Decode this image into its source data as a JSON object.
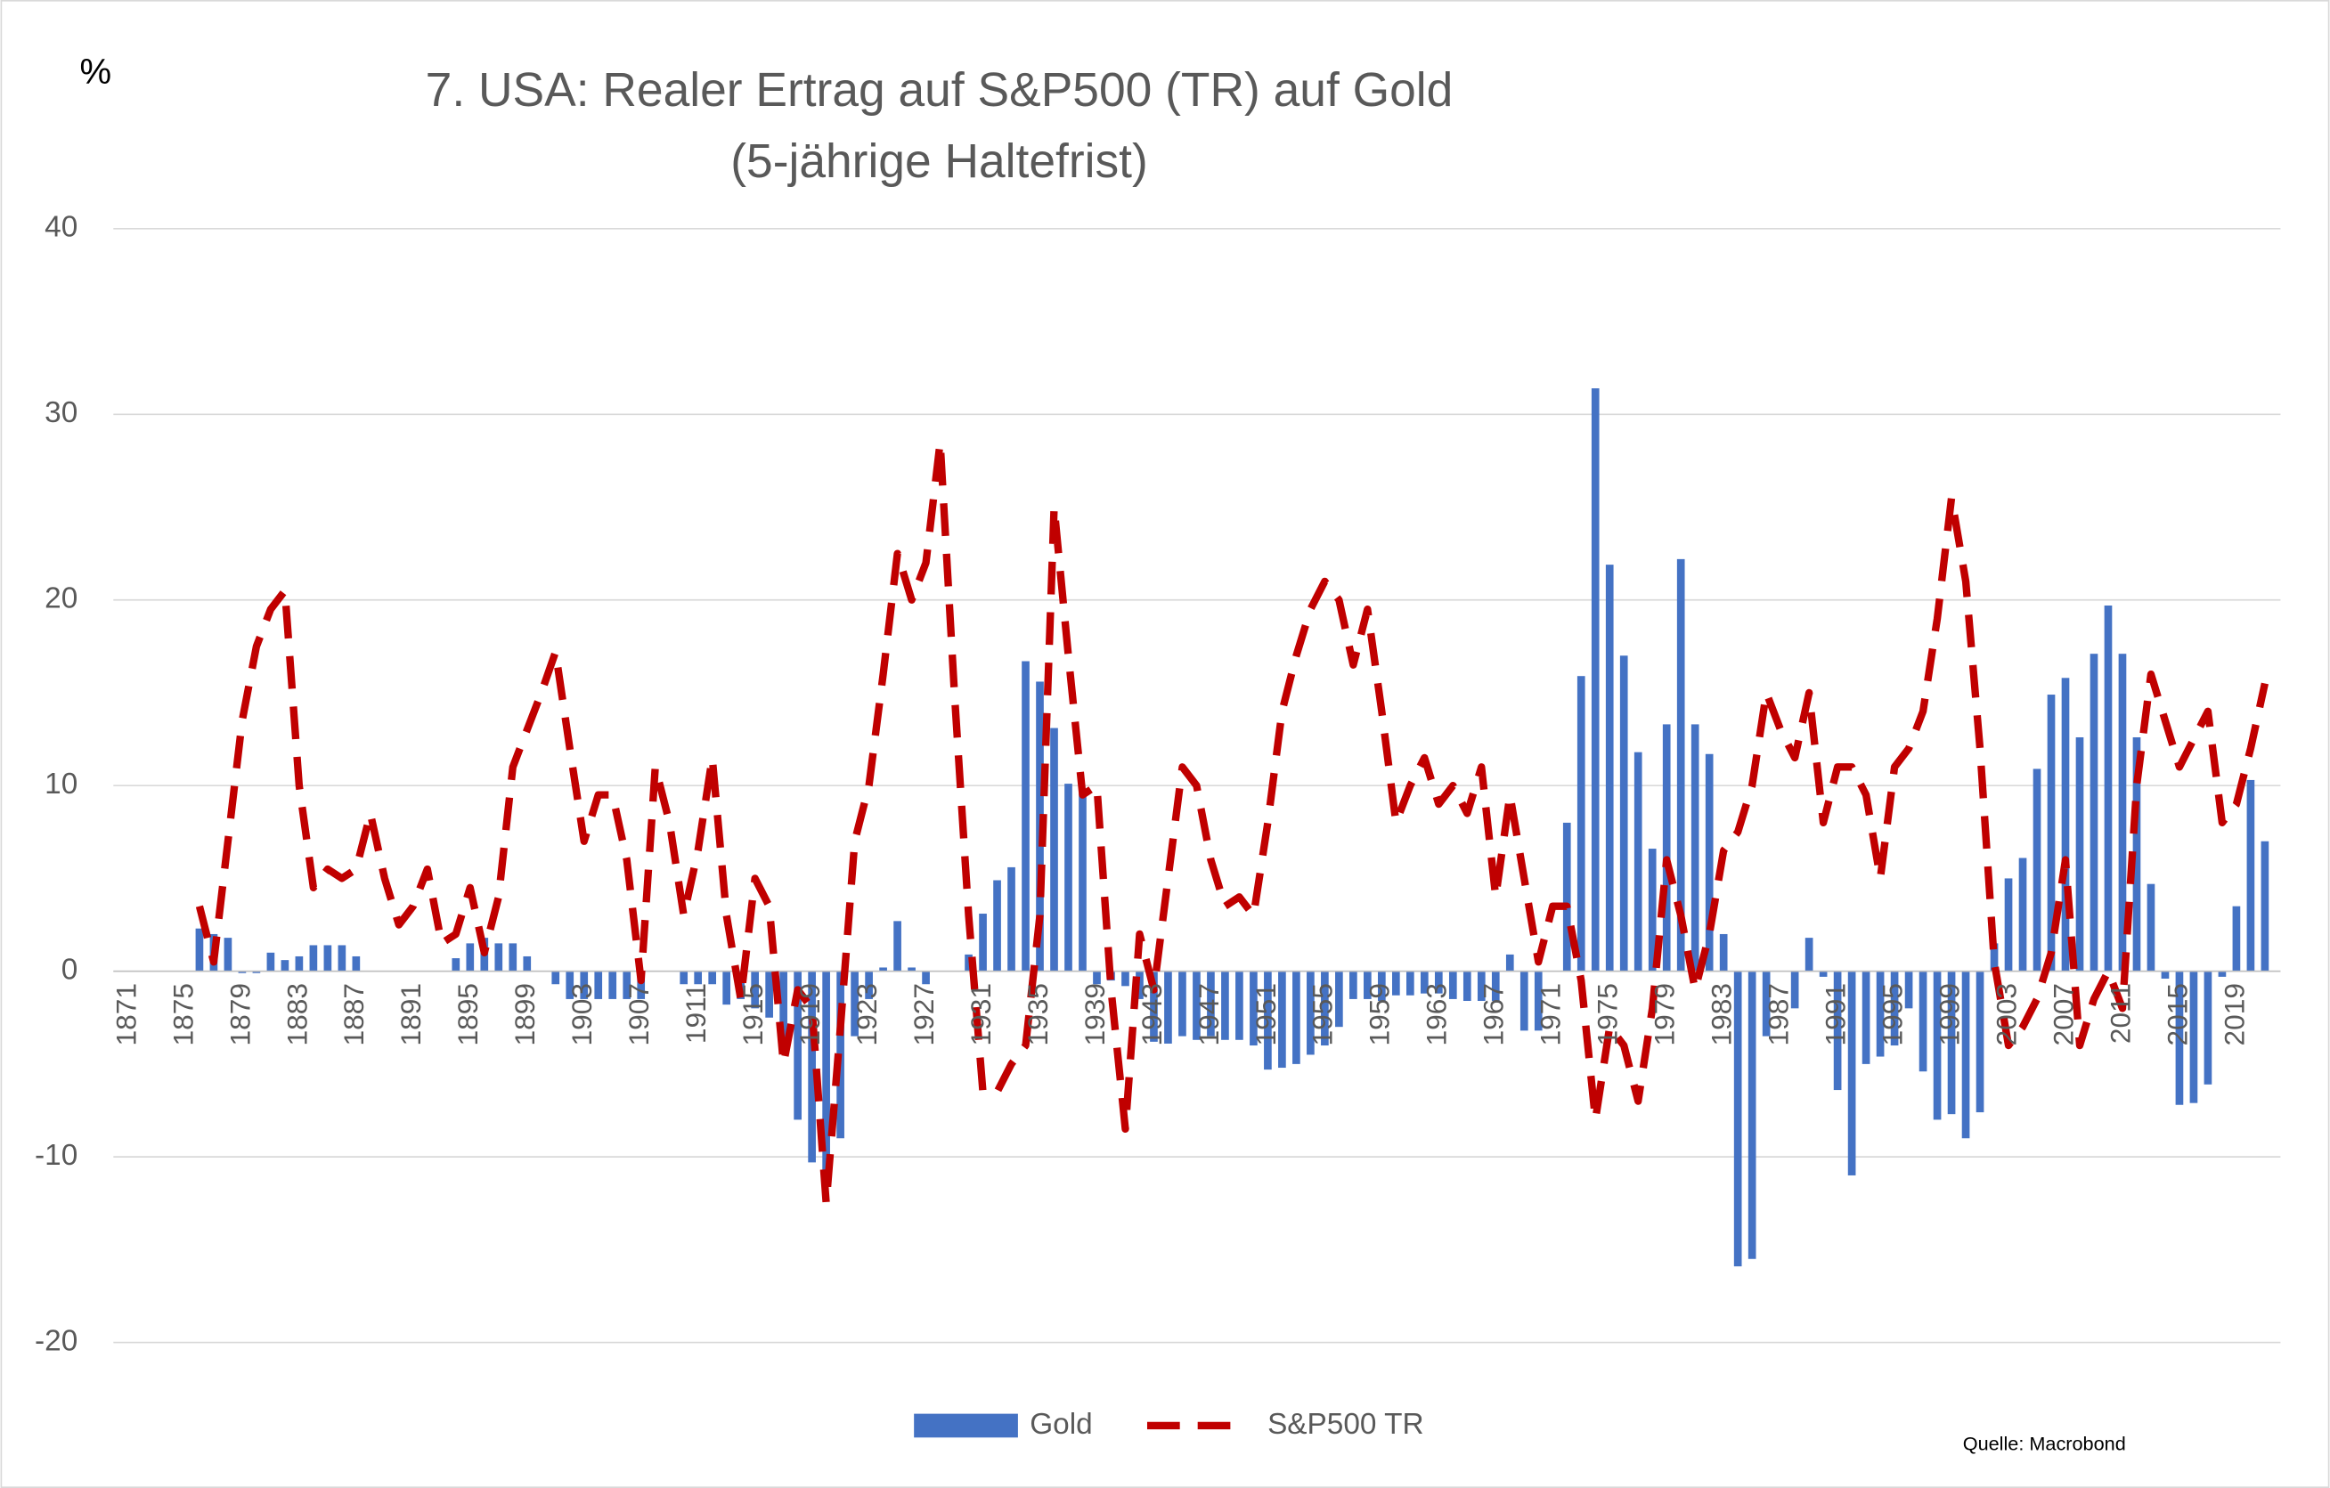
{
  "chart_data": {
    "type": "bar_line",
    "title": "7. USA: Realer Ertrag auf S&P500 (TR) auf Gold",
    "subtitle": "(5-jährige Haltefrist)",
    "y_label": "%",
    "source": "Quelle: Macrobond",
    "categories": [
      "1871",
      null,
      null,
      null,
      "1875",
      null,
      null,
      null,
      "1879",
      null,
      null,
      null,
      "1883",
      null,
      null,
      null,
      "1887",
      null,
      null,
      null,
      "1891",
      null,
      null,
      null,
      "1895",
      null,
      null,
      null,
      "1899",
      null,
      null,
      null,
      "1903",
      null,
      null,
      null,
      "1907",
      null,
      null,
      null,
      "1911",
      null,
      null,
      null,
      "1915",
      null,
      null,
      null,
      "1919",
      null,
      null,
      null,
      "1923",
      null,
      null,
      null,
      "1927",
      null,
      null,
      null,
      "1931",
      null,
      null,
      null,
      "1935",
      null,
      null,
      null,
      "1939",
      null,
      null,
      null,
      "1943",
      null,
      null,
      null,
      "1947",
      null,
      null,
      null,
      "1951",
      null,
      null,
      null,
      "1955",
      null,
      null,
      null,
      "1959",
      null,
      null,
      null,
      "1963",
      null,
      null,
      null,
      "1967",
      null,
      null,
      null,
      "1971",
      null,
      null,
      null,
      "1975",
      null,
      null,
      null,
      "1979",
      null,
      null,
      null,
      "1983",
      null,
      null,
      null,
      "1987",
      null,
      null,
      null,
      "1991",
      null,
      null,
      null,
      "1995",
      null,
      null,
      null,
      "1999",
      null,
      null,
      null,
      "2003",
      null,
      null,
      null,
      "2007",
      null,
      null,
      null,
      "2011",
      null,
      null,
      null,
      "2015",
      null,
      null,
      null,
      "2019",
      null,
      null
    ],
    "series": [
      {
        "name": "Gold",
        "type": "bar",
        "color": "#4472c4",
        "values": [
          null,
          null,
          null,
          null,
          null,
          2.3,
          2.0,
          1.8,
          -0.1,
          -0.1,
          1.0,
          0.6,
          0.8,
          1.4,
          1.4,
          1.4,
          0.8,
          0,
          0,
          0,
          0,
          0,
          0,
          0.7,
          1.5,
          1.8,
          1.5,
          1.5,
          0.8,
          0,
          -0.7,
          -1.5,
          -1.5,
          -1.5,
          -1.5,
          -1.5,
          -1.5,
          0,
          0,
          -0.7,
          -0.7,
          -0.7,
          -1.8,
          -1.5,
          -2.0,
          -2.5,
          -4,
          -8,
          -10.3,
          -11,
          -9,
          -3.5,
          -1.5,
          0.2,
          2.7,
          0.2,
          -0.7,
          0,
          0,
          0.9,
          3.1,
          4.9,
          5.6,
          16.7,
          15.6,
          13.1,
          10.1,
          9.6,
          -0.7,
          -0.5,
          -0.8,
          -1.5,
          -3.8,
          -3.9,
          -3.5,
          -3.7,
          -3.5,
          -3.7,
          -3.7,
          -4,
          -5.3,
          -5.2,
          -5,
          -4.5,
          -4,
          -3,
          -1.5,
          -1.5,
          -1.6,
          -1.3,
          -1.3,
          -1.2,
          -1.2,
          -1.5,
          -1.6,
          -1.6,
          -1.6,
          0.9,
          -3.2,
          -3.2,
          0,
          8,
          15.9,
          31.4,
          21.9,
          17,
          11.8,
          6.6,
          13.3,
          22.2,
          13.3,
          11.7,
          2.0,
          -15.9,
          -15.5,
          -3.5,
          0,
          -2,
          1.8,
          -0.3,
          -6.4,
          -11,
          -5,
          -4.6,
          -4,
          -2,
          -5.4,
          -8,
          -7.7,
          -9,
          -7.6,
          1.5,
          5,
          6.1,
          10.9,
          14.9,
          15.8,
          12.6,
          17.1,
          19.7,
          17.1,
          12.6,
          4.7,
          -0.4,
          -7.2,
          -7.1,
          -6.1,
          -0.3,
          3.5,
          10.3,
          7.0
        ]
      },
      {
        "name": "S&P500 TR",
        "type": "line",
        "color": "#c00000",
        "dashed": true,
        "values": [
          null,
          null,
          null,
          null,
          null,
          3.5,
          0.5,
          7,
          13.5,
          17.5,
          19.5,
          20.5,
          10,
          4.5,
          5.5,
          5,
          5.5,
          8.5,
          5,
          2.5,
          3.5,
          5.5,
          1.5,
          2,
          4.5,
          1,
          4,
          11,
          13,
          15,
          17.2,
          12,
          7,
          9.5,
          9.5,
          6,
          -0.5,
          11,
          8,
          3,
          6.5,
          11.5,
          3,
          -1.5,
          5,
          3.5,
          -5,
          -1,
          -2,
          -12.5,
          -3,
          7,
          10,
          16,
          22.5,
          20,
          22,
          28.5,
          15,
          3,
          -6.5,
          -6.5,
          -5,
          -4,
          3,
          25,
          17,
          9.5,
          10,
          -1,
          -8.5,
          2,
          -1,
          5,
          11,
          10,
          6,
          3.5,
          4,
          3,
          8,
          14,
          17,
          19.5,
          21,
          20,
          16.5,
          19.5,
          14,
          8,
          10,
          11.5,
          9,
          10,
          8.5,
          11,
          4,
          9.5,
          5,
          0.5,
          3.5,
          3.5,
          -0.5,
          -8,
          -3,
          -4,
          -7,
          -2,
          6,
          3,
          -1,
          2,
          6.5,
          7.5,
          10,
          15,
          13,
          11.5,
          15,
          8,
          11,
          11,
          9.5,
          5,
          11,
          12,
          14,
          19,
          25.5,
          21,
          12,
          0.5,
          -4,
          -3,
          -1.5,
          1,
          6,
          -4,
          -1.5,
          0,
          -2,
          10,
          16,
          13.5,
          11,
          12.5,
          14,
          8,
          9,
          12,
          15.5
        ]
      }
    ],
    "ylim": [
      -20,
      40
    ],
    "yticks": [
      -20,
      -10,
      0,
      10,
      20,
      30,
      40
    ],
    "grid": true,
    "legend": "bottom"
  }
}
